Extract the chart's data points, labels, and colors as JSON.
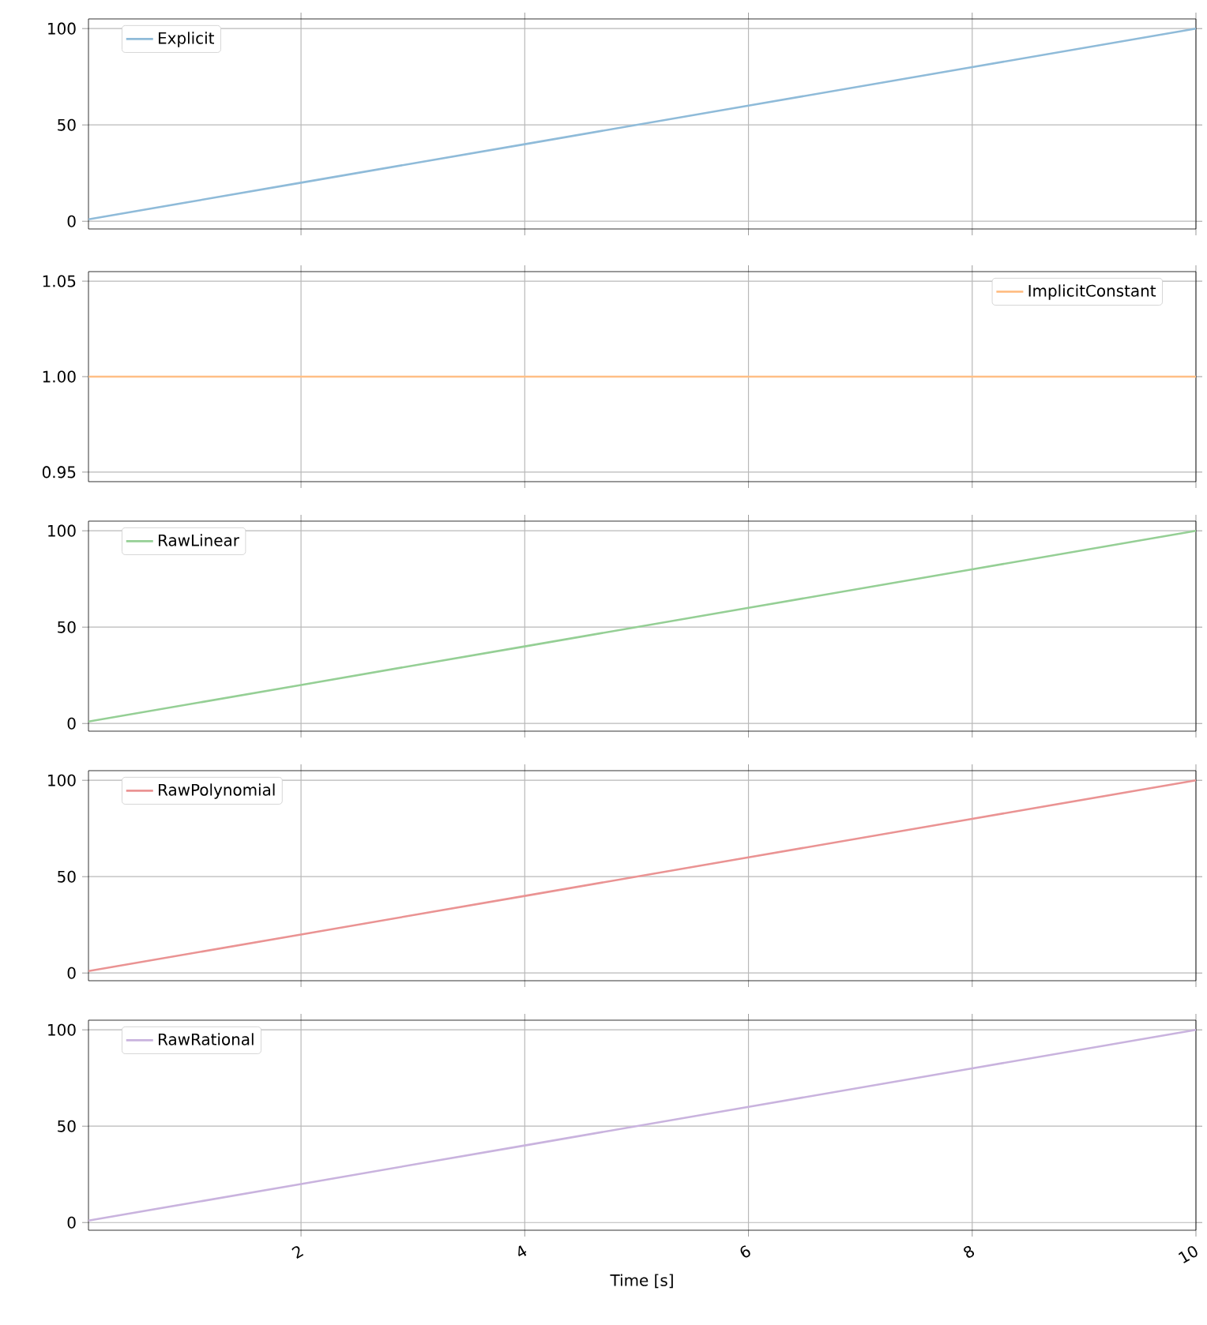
{
  "chart_data": [
    {
      "type": "line",
      "x": [
        0.1,
        2,
        4,
        6,
        8,
        10
      ],
      "series": [
        {
          "name": "Explicit",
          "color": "#8fbbd9",
          "values": [
            1,
            20,
            40,
            60,
            80,
            100
          ]
        }
      ],
      "xlim": [
        0.1,
        10
      ],
      "xticks": [
        2,
        4,
        6,
        8,
        10
      ],
      "ylim": [
        -4,
        105
      ],
      "yticks": [
        0,
        50,
        100
      ],
      "grid": true,
      "legend": "top left",
      "tick_labels": "y"
    },
    {
      "type": "line",
      "x": [
        0.1,
        2,
        4,
        6,
        8,
        10
      ],
      "series": [
        {
          "name": "ImplicitConstant",
          "color": "#ffbf86",
          "values": [
            1,
            1,
            1,
            1,
            1,
            1
          ]
        }
      ],
      "xlim": [
        0.1,
        10
      ],
      "xticks": [
        2,
        4,
        6,
        8,
        10
      ],
      "ylim": [
        0.945,
        1.055
      ],
      "yticks": [
        0.95,
        {
          "value": 1,
          "label": "1.00"
        },
        1.05
      ],
      "grid": true,
      "legend": "top right",
      "tick_labels": "y"
    },
    {
      "type": "line",
      "x": [
        0.1,
        2,
        4,
        6,
        8,
        10
      ],
      "series": [
        {
          "name": "RawLinear",
          "color": "#95cf95",
          "values": [
            1,
            20,
            40,
            60,
            80,
            100
          ]
        }
      ],
      "xlim": [
        0.1,
        10
      ],
      "xticks": [
        2,
        4,
        6,
        8,
        10
      ],
      "ylim": [
        -4,
        105
      ],
      "yticks": [
        0,
        50,
        100
      ],
      "grid": true,
      "legend": "top left",
      "tick_labels": "y"
    },
    {
      "type": "line",
      "x": [
        0.1,
        2,
        4,
        6,
        8,
        10
      ],
      "series": [
        {
          "name": "RawPolynomial",
          "color": "#ea9393",
          "values": [
            1,
            20,
            40,
            60,
            80,
            100
          ]
        }
      ],
      "xlim": [
        0.1,
        10
      ],
      "xticks": [
        2,
        4,
        6,
        8,
        10
      ],
      "ylim": [
        -4,
        105
      ],
      "yticks": [
        0,
        50,
        100
      ],
      "grid": true,
      "legend": "top left",
      "tick_labels": "y"
    },
    {
      "type": "line",
      "x": [
        0.1,
        2,
        4,
        6,
        8,
        10
      ],
      "series": [
        {
          "name": "RawRational",
          "color": "#c9b3de",
          "values": [
            1,
            20,
            40,
            60,
            80,
            100
          ]
        }
      ],
      "xlim": [
        0.1,
        10
      ],
      "xticks": [
        2,
        4,
        6,
        8,
        10
      ],
      "ylim": [
        -4,
        105
      ],
      "yticks": [
        0,
        50,
        100
      ],
      "grid": true,
      "legend": "top left",
      "xlabel": "Time [s]"
    }
  ]
}
